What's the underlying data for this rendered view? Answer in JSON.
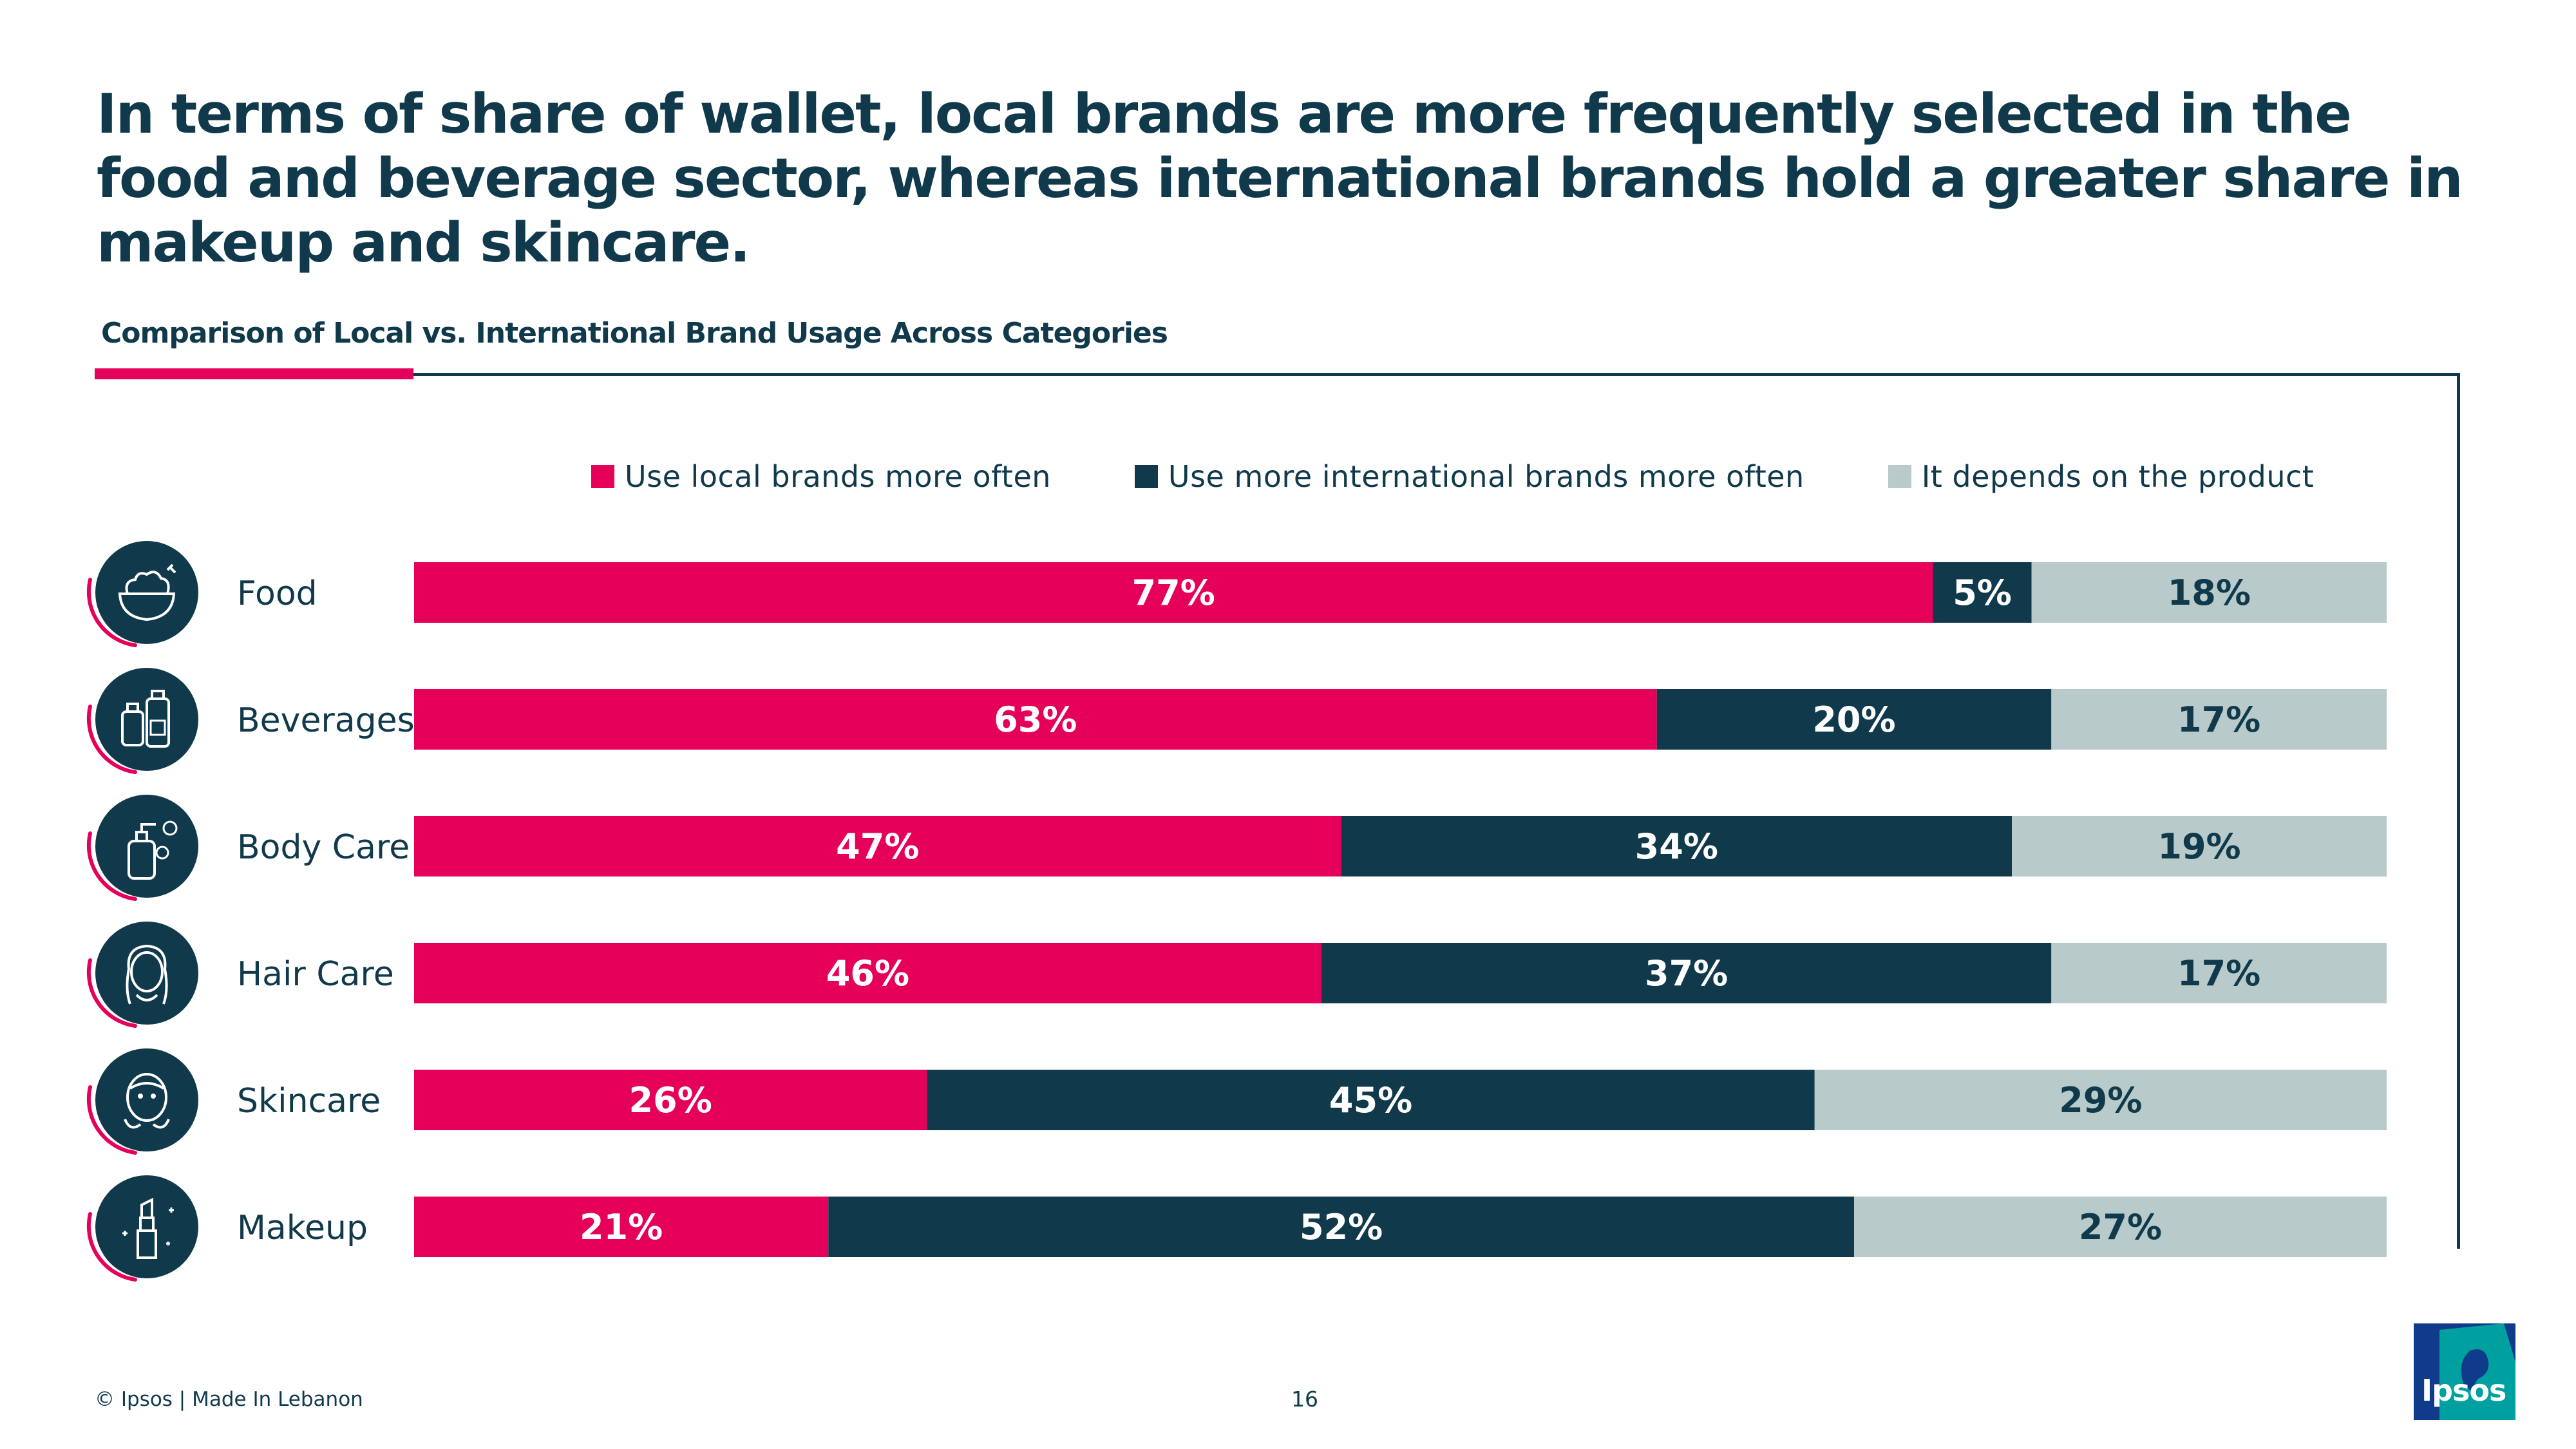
{
  "headline": "In terms of share of wallet, local brands are more frequently selected in the food and beverage sector, whereas international brands hold a greater share in makeup and skincare.",
  "subtitle": "Comparison of Local vs. International Brand Usage Across Categories",
  "footer": {
    "copyright": "© Ipsos | Made In Lebanon",
    "page_number": "16",
    "logo_text": "Ipsos"
  },
  "colors": {
    "local": "#e5005a",
    "international": "#103a4b",
    "depends": "#b8caca",
    "icon_circle": "#103a4b",
    "accent_arc": "#e5005a"
  },
  "icons": [
    "food-bowl-icon",
    "beverages-bottles-icon",
    "body-care-pump-bottle-icon",
    "hair-care-woman-icon",
    "skincare-face-mask-icon",
    "makeup-lipstick-icon"
  ],
  "chart_data": {
    "type": "bar",
    "orientation": "horizontal",
    "stacked": true,
    "categories": [
      "Food",
      "Beverages",
      "Body Care",
      "Hair Care",
      "Skincare",
      "Makeup"
    ],
    "series": [
      {
        "name": "Use local brands more often",
        "values": [
          77,
          63,
          47,
          46,
          26,
          21
        ],
        "labels": [
          "77%",
          "63%",
          "47%",
          "46%",
          "26%",
          "21%"
        ]
      },
      {
        "name": "Use more international brands more often",
        "values": [
          5,
          20,
          34,
          37,
          45,
          52
        ],
        "labels": [
          "5%",
          "20%",
          "34%",
          "37%",
          "45%",
          "52%"
        ]
      },
      {
        "name": "It depends on the product",
        "values": [
          18,
          17,
          19,
          17,
          29,
          27
        ],
        "labels": [
          "18%",
          "17%",
          "19%",
          "17%",
          "29%",
          "27%"
        ]
      }
    ],
    "xlim": [
      0,
      100
    ],
    "legend": "top",
    "grid": false
  }
}
